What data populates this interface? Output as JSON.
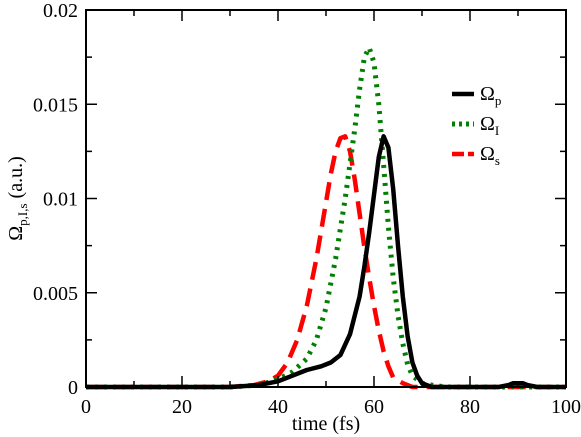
{
  "chart_data": {
    "type": "line",
    "title": "",
    "xlabel": "time (fs)",
    "ylabel": {
      "main": "Ω",
      "sub": "p,I,s",
      "unit": " (a.u.)"
    },
    "xlim": [
      0,
      100
    ],
    "ylim": [
      0,
      0.02
    ],
    "xticks": [
      0,
      20,
      40,
      60,
      80,
      100
    ],
    "xtick_labels": [
      "0",
      "20",
      "40",
      "60",
      "80",
      "100"
    ],
    "yticks": [
      0,
      0.005,
      0.01,
      0.015,
      0.02
    ],
    "ytick_labels": [
      "0",
      "0.005",
      "0.01",
      "0.015",
      "0.02"
    ],
    "grid": false,
    "legend_position": "top-right",
    "series": [
      {
        "name": "Ωp",
        "legend_main": "Ω",
        "legend_sub": "p",
        "color": "#000000",
        "style": "solid",
        "points": [
          [
            0,
            0
          ],
          [
            30,
            0
          ],
          [
            36,
            0.0001
          ],
          [
            40,
            0.0003
          ],
          [
            43,
            0.0006
          ],
          [
            46,
            0.0009
          ],
          [
            49,
            0.0011
          ],
          [
            51,
            0.0013
          ],
          [
            53,
            0.0017
          ],
          [
            55,
            0.0028
          ],
          [
            57,
            0.0048
          ],
          [
            58,
            0.0064
          ],
          [
            59,
            0.0082
          ],
          [
            60,
            0.0102
          ],
          [
            61,
            0.0122
          ],
          [
            62,
            0.0133
          ],
          [
            63,
            0.0127
          ],
          [
            64,
            0.0105
          ],
          [
            65,
            0.0075
          ],
          [
            66,
            0.0048
          ],
          [
            67,
            0.0027
          ],
          [
            68,
            0.0013
          ],
          [
            69,
            0.0006
          ],
          [
            70,
            0.0002
          ],
          [
            72,
            0
          ],
          [
            80,
            0
          ],
          [
            84,
            0
          ],
          [
            86,
            0
          ],
          [
            88,
            0.0001
          ],
          [
            89,
            0.0002
          ],
          [
            90,
            0.0002
          ],
          [
            91,
            0.0002
          ],
          [
            92,
            0.0001
          ],
          [
            94,
            0
          ],
          [
            100,
            0
          ]
        ]
      },
      {
        "name": "ΩI",
        "legend_main": "Ω",
        "legend_sub": "I",
        "color": "#008000",
        "style": "dotted",
        "points": [
          [
            0,
            0
          ],
          [
            30,
            0
          ],
          [
            36,
            0.0001
          ],
          [
            40,
            0.0004
          ],
          [
            43,
            0.0008
          ],
          [
            46,
            0.0015
          ],
          [
            48,
            0.0025
          ],
          [
            50,
            0.0042
          ],
          [
            52,
            0.0068
          ],
          [
            54,
            0.01
          ],
          [
            56,
            0.0137
          ],
          [
            57,
            0.0158
          ],
          [
            58,
            0.0175
          ],
          [
            59,
            0.018
          ],
          [
            60,
            0.0172
          ],
          [
            61,
            0.015
          ],
          [
            62,
            0.0118
          ],
          [
            63,
            0.0085
          ],
          [
            64,
            0.0058
          ],
          [
            65,
            0.0038
          ],
          [
            66,
            0.0023
          ],
          [
            67,
            0.0012
          ],
          [
            68,
            0.0006
          ],
          [
            70,
            0.0002
          ],
          [
            72,
            0.0001
          ],
          [
            75,
            0
          ],
          [
            80,
            0
          ],
          [
            100,
            0
          ]
        ]
      },
      {
        "name": "Ωs",
        "legend_main": "Ω",
        "legend_sub": "s",
        "color": "#ff0000",
        "style": "dashed",
        "points": [
          [
            0,
            0
          ],
          [
            30,
            0
          ],
          [
            35,
            0.0001
          ],
          [
            38,
            0.0003
          ],
          [
            40,
            0.0006
          ],
          [
            42,
            0.0013
          ],
          [
            44,
            0.0025
          ],
          [
            46,
            0.0043
          ],
          [
            48,
            0.0068
          ],
          [
            50,
            0.0098
          ],
          [
            51,
            0.0113
          ],
          [
            52,
            0.0125
          ],
          [
            53,
            0.0132
          ],
          [
            54,
            0.0133
          ],
          [
            55,
            0.0125
          ],
          [
            56,
            0.011
          ],
          [
            57,
            0.0092
          ],
          [
            58,
            0.0074
          ],
          [
            59,
            0.0058
          ],
          [
            60,
            0.0043
          ],
          [
            61,
            0.003
          ],
          [
            62,
            0.0019
          ],
          [
            63,
            0.0011
          ],
          [
            64,
            0.0005
          ],
          [
            66,
            0.0002
          ],
          [
            68,
            0
          ],
          [
            70,
            0
          ],
          [
            100,
            0
          ]
        ]
      }
    ]
  }
}
